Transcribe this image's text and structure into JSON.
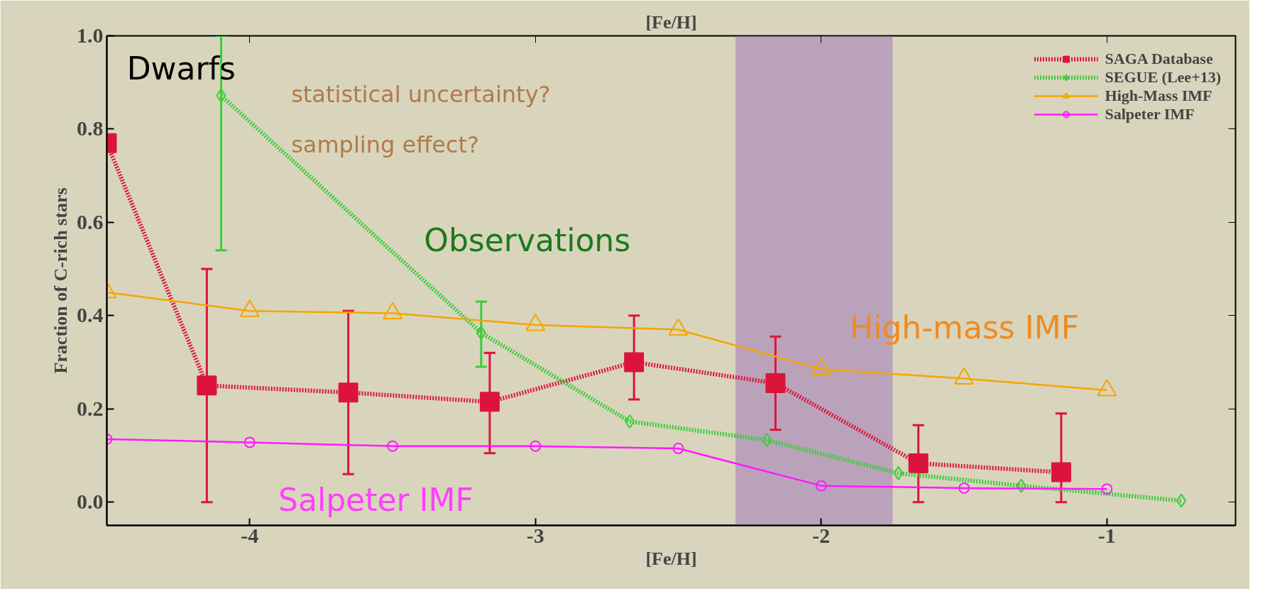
{
  "chart_data": {
    "type": "line",
    "xlabel": "[Fe/H]",
    "x2label": "[Fe/H]",
    "ylabel": "Fraction of C-rich stars",
    "xlim": [
      -4.5,
      -0.55
    ],
    "ylim": [
      -0.05,
      1.0
    ],
    "xticks": [
      -4,
      -3,
      -2,
      -1
    ],
    "yticks": [
      {
        "value": 0,
        "label": "0.0"
      },
      {
        "value": 0.2,
        "label": "0.2"
      },
      {
        "value": 0.4,
        "label": "0.4"
      },
      {
        "value": 0.6,
        "label": "0.6"
      },
      {
        "value": 0.8,
        "label": "0.8"
      },
      {
        "value": 1.0,
        "label": "1.0"
      }
    ],
    "grid": false,
    "legend": "top right",
    "series": [
      {
        "name": "SAGA Database",
        "color": "#dc143c",
        "marker": "square",
        "line_style": "dotted",
        "x": [
          -4.5,
          -4.15,
          -3.655,
          -3.16,
          -2.655,
          -2.16,
          -1.66,
          -1.16
        ],
        "values": [
          0.77,
          0.25,
          0.235,
          0.215,
          0.3,
          0.255,
          0.083,
          0.064
        ],
        "errors": [
          null,
          [
            0,
            0.5
          ],
          [
            0.06,
            0.41
          ],
          [
            0.105,
            0.32
          ],
          [
            0.22,
            0.4
          ],
          [
            0.155,
            0.355
          ],
          [
            0,
            0.165
          ],
          [
            0,
            0.19
          ]
        ]
      },
      {
        "name": "SEGUE (Lee+13)",
        "color": "#3ccc3c",
        "marker": "diamond",
        "line_style": "dotted",
        "x": [
          -4.1,
          -3.19,
          -2.67,
          -2.19,
          -1.73,
          -1.3,
          -0.74
        ],
        "values": [
          0.872,
          0.363,
          0.173,
          0.133,
          0.062,
          0.035,
          0.003
        ],
        "errors": [
          [
            0.54,
            1.0
          ],
          [
            0.29,
            0.43
          ],
          null,
          null,
          null,
          null,
          null
        ]
      },
      {
        "name": "High-Mass IMF",
        "color": "#f5a500",
        "marker": "triangle",
        "line_style": "solid",
        "x": [
          -4.5,
          -4.0,
          -3.5,
          -3.0,
          -2.5,
          -2.0,
          -1.5,
          -1.0
        ],
        "values": [
          0.45,
          0.41,
          0.405,
          0.38,
          0.37,
          0.285,
          0.265,
          0.24
        ]
      },
      {
        "name": "Salpeter IMF",
        "color": "#ff1aff",
        "marker": "circle",
        "line_style": "solid",
        "x": [
          -4.5,
          -4.0,
          -3.5,
          -3.0,
          -2.5,
          -2.0,
          -1.5,
          -1.0
        ],
        "values": [
          0.135,
          0.128,
          0.12,
          0.12,
          0.115,
          0.035,
          0.03,
          0.028
        ]
      }
    ],
    "bands": [
      {
        "axis": "x",
        "from": -2.3,
        "to": -1.75,
        "color": "#a07ab8"
      }
    ],
    "annotations": [
      "Dwarfs",
      "statistical uncertainty?",
      "sampling effect?",
      "Observations",
      "High-mass IMF",
      "Salpeter IMF"
    ]
  }
}
